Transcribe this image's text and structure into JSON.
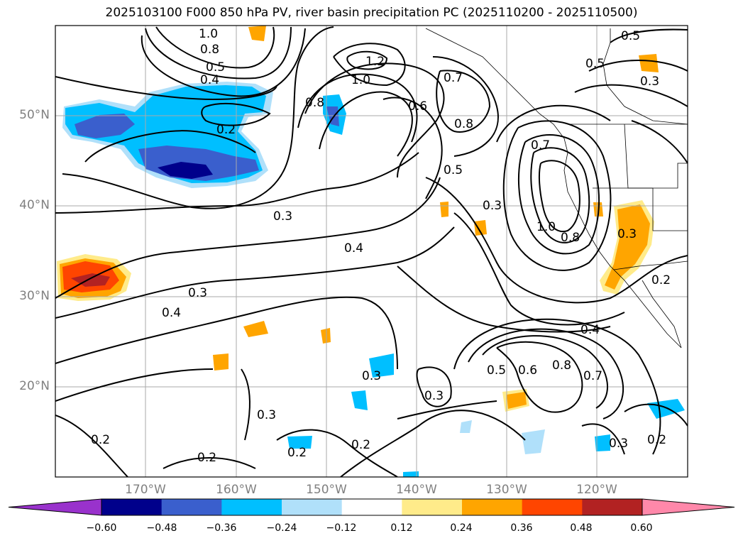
{
  "title": "2025103100 F000 850 hPa PV, river basin precipitation PC (2025110200 - 2025110500)",
  "lat_labels": [
    "50°N",
    "40°N",
    "30°N",
    "20°N"
  ],
  "lon_labels": [
    "170°W",
    "160°W",
    "150°W",
    "140°W",
    "130°W",
    "120°W"
  ],
  "contour_labels": [
    "1.0",
    "0.8",
    "0.5",
    "0.4",
    "0.2",
    "1.2",
    "1.0",
    "0.8",
    "0.6",
    "0.7",
    "0.8",
    "0.5",
    "0.3",
    "0.7",
    "1.0",
    "0.8",
    "0.5",
    "0.3",
    "0.3",
    "0.4",
    "0.3",
    "0.4",
    "0.4",
    "0.5",
    "0.6",
    "0.8",
    "0.7",
    "0.3",
    "0.3",
    "0.3",
    "0.2",
    "0.2",
    "0.2",
    "0.2",
    "0.3",
    "0.2",
    "0.5",
    "0.3",
    "0.2"
  ],
  "colorbar": {
    "ticks": [
      "−0.60",
      "−0.48",
      "−0.36",
      "−0.24",
      "−0.12",
      "0.12",
      "0.24",
      "0.36",
      "0.48",
      "0.60"
    ],
    "colors": [
      "#9932cc",
      "#00008b",
      "#3a5fcd",
      "#00bfff",
      "#b0e0fa",
      "#ffffff",
      "#ffeb8a",
      "#ffa500",
      "#ff4500",
      "#b22222",
      "#ff88aa"
    ]
  }
}
